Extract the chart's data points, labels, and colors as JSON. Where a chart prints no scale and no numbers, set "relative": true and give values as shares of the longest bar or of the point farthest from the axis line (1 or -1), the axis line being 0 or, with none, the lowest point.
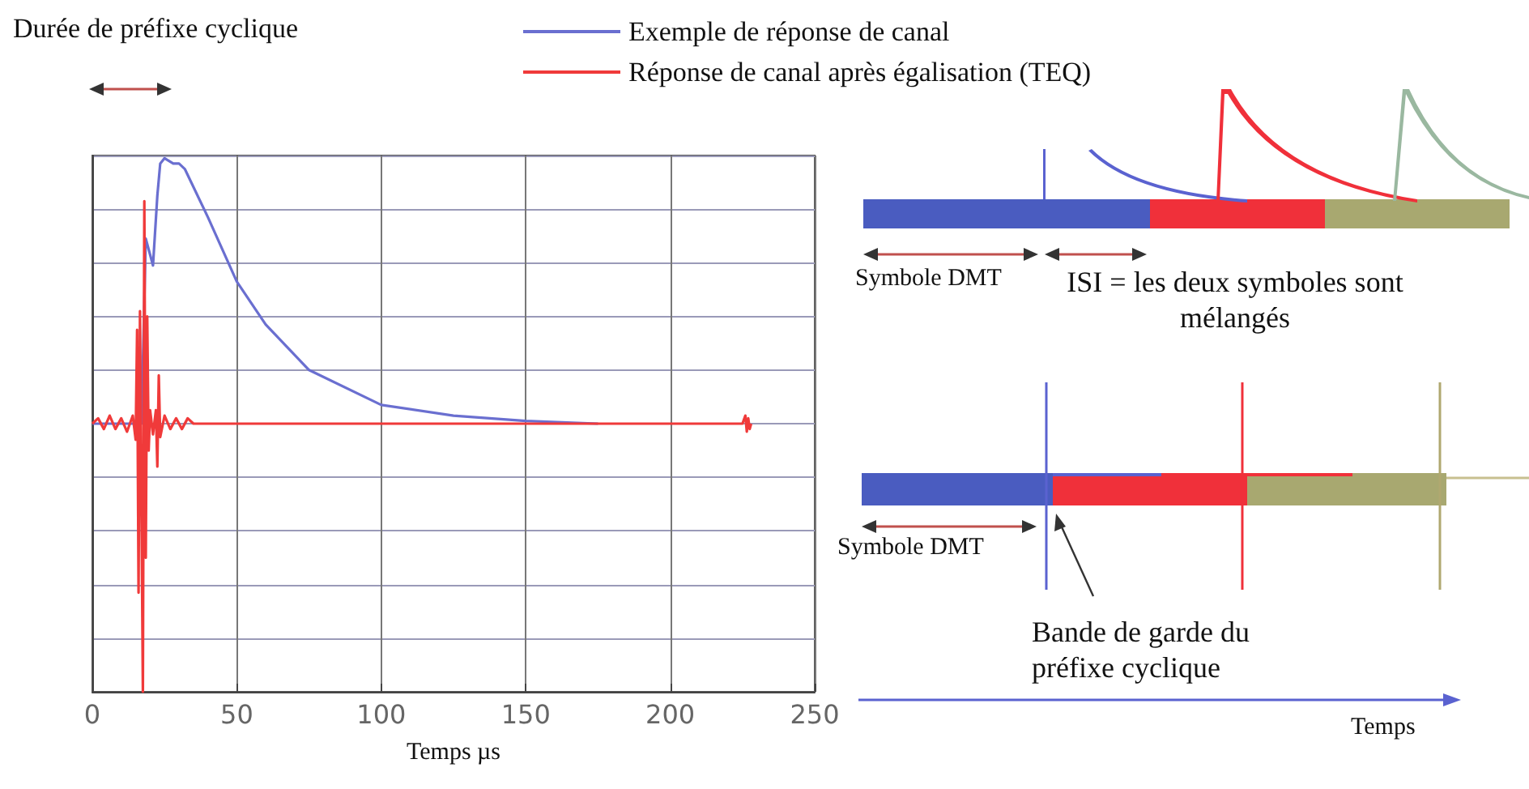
{
  "chart_data": {
    "type": "line",
    "relative": true,
    "xlabel": "Temps µs",
    "xlim": [
      0,
      250
    ],
    "xticks": [
      0,
      50,
      100,
      150,
      200,
      250
    ],
    "grid": true,
    "legend": "top",
    "marker": "none",
    "line_style": "solid",
    "annotations": [
      "Durée de préfixe cyclique",
      "Symbole DMT",
      "ISI = les deux symboles sont mélangés",
      "Symbole DMT",
      "Bande de garde du préfixe cyclique",
      "Temps"
    ],
    "series": [
      {
        "name": "Exemple de réponse de canal",
        "color": "#6a6fd0",
        "x": [
          0,
          17,
          18.5,
          21,
          22.5,
          23.5,
          25,
          28,
          30,
          32,
          40,
          50,
          60,
          75,
          100,
          125,
          150,
          175
        ],
        "values": [
          0,
          0,
          0.69,
          0.59,
          0.85,
          0.97,
          0.99,
          0.97,
          0.97,
          0.95,
          0.77,
          0.53,
          0.37,
          0.2,
          0.07,
          0.03,
          0.01,
          0
        ]
      },
      {
        "name": "Réponse de canal après égalisation (TEQ)",
        "color": "#f03a3a",
        "x": [
          0,
          2,
          4,
          6,
          8,
          10,
          12,
          14,
          15,
          15.5,
          16,
          16.5,
          17.5,
          18,
          18.5,
          19,
          19.5,
          20,
          21,
          22,
          22.5,
          23,
          23.5,
          25,
          27,
          29,
          31,
          33,
          35,
          225,
          226,
          226.5,
          227,
          227.5,
          228
        ],
        "values": [
          0,
          0.02,
          -0.02,
          0.03,
          -0.02,
          0.02,
          -0.03,
          0.03,
          -0.06,
          0.35,
          -0.63,
          0.42,
          -1,
          0.83,
          -0.5,
          0.4,
          -0.1,
          0.05,
          -0.04,
          0.05,
          -0.16,
          0.18,
          -0.05,
          0.03,
          -0.02,
          0.02,
          -0.02,
          0.02,
          0,
          0,
          0.03,
          -0.03,
          0.02,
          -0.02,
          0
        ]
      }
    ]
  }
}
